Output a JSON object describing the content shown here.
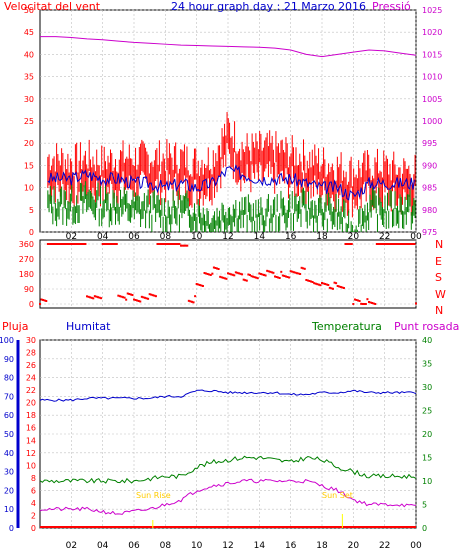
{
  "title": "24 hour graph day : 21 Marzo 2016",
  "colors": {
    "wind": "#ff0000",
    "gust_bg": "#ff0000",
    "wind_avg": "#0000cc",
    "wind_low": "#008000",
    "pressure": "#cc00cc",
    "direction": "#ff0000",
    "humidity": "#0000cc",
    "temperature": "#008000",
    "dewpoint": "#cc00cc",
    "rain": "#ff0000",
    "sun": "#ffff00",
    "grid": "#c0c0c0"
  },
  "hour_ticks": [
    "02",
    "04",
    "06",
    "08",
    "10",
    "12",
    "14",
    "16",
    "18",
    "20",
    "22",
    "00"
  ],
  "top": {
    "left_label": "Velocitat del vent",
    "right_label": "Pressió",
    "left_ticks": [
      0,
      5,
      10,
      15,
      20,
      25,
      30,
      35,
      40,
      45,
      50
    ],
    "right_ticks": [
      975,
      980,
      985,
      990,
      995,
      1000,
      1005,
      1010,
      1015,
      1020,
      1025
    ]
  },
  "dir": {
    "ticks": [
      0,
      90,
      180,
      270,
      360
    ],
    "labels": [
      "N",
      "W",
      "S",
      "E",
      "N"
    ]
  },
  "bottom": {
    "label_rain": "Pluja",
    "label_hum": "Humitat",
    "label_temp": "Temperatura",
    "label_dew": "Punt rosada",
    "hum_ticks": [
      0,
      10,
      20,
      30,
      40,
      50,
      60,
      70,
      80,
      90,
      100
    ],
    "rain_ticks": [
      0,
      2,
      4,
      6,
      8,
      10,
      12,
      14,
      16,
      18,
      20,
      22,
      24,
      26,
      28,
      30
    ],
    "temp_ticks": [
      0,
      5,
      10,
      15,
      20,
      25,
      30,
      35,
      40
    ],
    "sunrise": "Sun Rise",
    "sunset": "Sun Set"
  },
  "chart_data": [
    {
      "type": "line",
      "title": "24 hour graph day : 21 Marzo 2016",
      "ylabel": "Velocitat del vent",
      "y2label": "Pressió",
      "ylim": [
        0,
        50
      ],
      "y2lim": [
        975,
        1025
      ],
      "x": [
        0,
        1,
        2,
        3,
        4,
        5,
        6,
        7,
        8,
        9,
        10,
        11,
        12,
        13,
        14,
        15,
        16,
        17,
        18,
        19,
        20,
        21,
        22,
        23,
        24
      ],
      "series": [
        {
          "name": "gust",
          "values": [
            17,
            17,
            16,
            17,
            16,
            17,
            17,
            17,
            17,
            17,
            16,
            17,
            24,
            19,
            19,
            19,
            18,
            17,
            16,
            15,
            14,
            15,
            15,
            14,
            14
          ]
        },
        {
          "name": "average",
          "values": [
            12,
            12,
            12,
            13,
            12,
            12,
            11,
            11,
            10,
            11,
            10,
            11,
            14,
            13,
            12,
            12,
            12,
            11,
            10,
            10,
            8,
            11,
            11,
            11,
            11
          ]
        },
        {
          "name": "low",
          "values": [
            8,
            8,
            8,
            9,
            8,
            8,
            7,
            7,
            6,
            7,
            6,
            4,
            6,
            6,
            5,
            6,
            7,
            7,
            6,
            6,
            2,
            7,
            7,
            7,
            7
          ]
        },
        {
          "name": "Pressió",
          "values": [
            1019,
            1019,
            1018.8,
            1018.5,
            1018.3,
            1018,
            1017.7,
            1017.5,
            1017.3,
            1017.1,
            1017,
            1016.9,
            1016.8,
            1016.7,
            1016.6,
            1016.4,
            1016,
            1015,
            1014.5,
            1015,
            1015.5,
            1016,
            1015.8,
            1015.3,
            1014.8
          ]
        }
      ]
    },
    {
      "type": "scatter",
      "ylabel": "direction",
      "ylim": [
        0,
        360
      ],
      "series": [
        {
          "name": "direction",
          "x": [
            0,
            0.5,
            1,
            1.5,
            2,
            2.5,
            3,
            3.5,
            4,
            4.5,
            5,
            5.5,
            6,
            6.5,
            7,
            7.5,
            8,
            8.5,
            9,
            9.5,
            10,
            10.5,
            11,
            11.5,
            12,
            12.5,
            13,
            13.5,
            14,
            14.5,
            15,
            15.5,
            16,
            16.5,
            17,
            17.5,
            18,
            18.5,
            19,
            19.5,
            20,
            20.5,
            21,
            21.5,
            22,
            22.5,
            23,
            23.5,
            24
          ],
          "values": [
            10,
            360,
            360,
            360,
            360,
            360,
            40,
            30,
            360,
            360,
            40,
            45,
            35,
            40,
            45,
            360,
            360,
            360,
            350,
            30,
            120,
            175,
            200,
            170,
            180,
            175,
            160,
            170,
            175,
            180,
            175,
            170,
            185,
            200,
            150,
            120,
            110,
            110,
            110,
            360,
            10,
            10,
            10,
            360,
            360,
            360,
            360,
            360,
            15
          ]
        }
      ]
    },
    {
      "type": "line",
      "xlabel": "",
      "ylabel": "Humitat",
      "y2label": "Temperatura",
      "ylim": [
        0,
        100
      ],
      "y2lim": [
        0,
        40
      ],
      "x": [
        0,
        1,
        2,
        3,
        4,
        5,
        6,
        7,
        8,
        9,
        10,
        11,
        12,
        13,
        14,
        15,
        16,
        17,
        18,
        19,
        20,
        21,
        22,
        23,
        24
      ],
      "series": [
        {
          "name": "Humitat",
          "values": [
            68,
            68,
            68,
            69,
            69,
            69,
            69,
            69,
            70,
            70,
            73,
            73,
            72,
            72,
            72,
            72,
            71,
            71,
            72,
            72,
            73,
            72,
            72,
            72,
            72
          ]
        },
        {
          "name": "Temperatura",
          "values": [
            10,
            10,
            10,
            10,
            10,
            10,
            10,
            10.5,
            11,
            11,
            13,
            14,
            14.5,
            15,
            15,
            14.5,
            14,
            15,
            14.5,
            13,
            12,
            11,
            11,
            11,
            11
          ]
        },
        {
          "name": "Punt rosada",
          "values": [
            4,
            4,
            4,
            4,
            3.5,
            3,
            3.5,
            4,
            5,
            6,
            8,
            9,
            9.5,
            10,
            10,
            10,
            10,
            10,
            9,
            8,
            6,
            5,
            5,
            5,
            4.5
          ]
        },
        {
          "name": "Pluja",
          "values": [
            0,
            0,
            0,
            0,
            0,
            0,
            0,
            0,
            0,
            0,
            0,
            0,
            0,
            0,
            0,
            0,
            0,
            0,
            0,
            0,
            0,
            0,
            0,
            0,
            0
          ]
        }
      ]
    }
  ]
}
